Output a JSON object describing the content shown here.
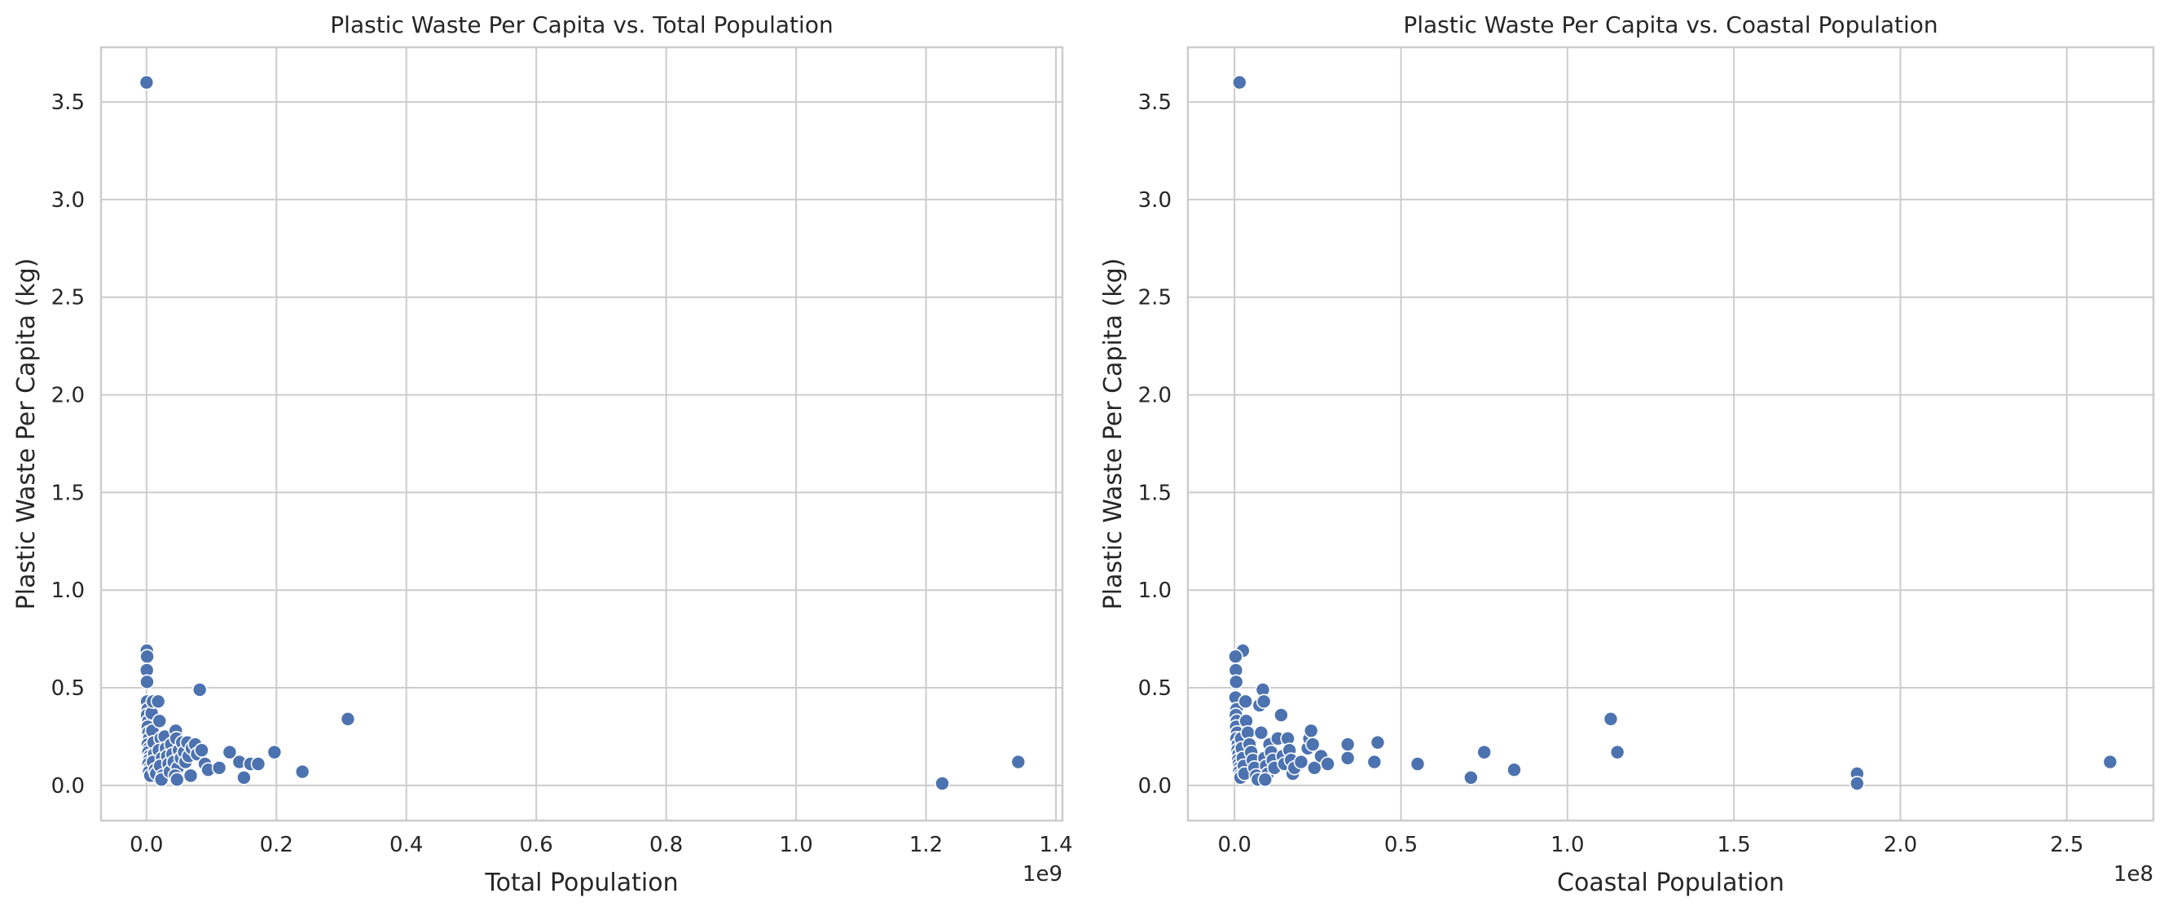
{
  "colors": {
    "marker": "#4c72b0",
    "grid": "#cccccc",
    "background": "#ffffff"
  },
  "chart_data": [
    {
      "type": "scatter",
      "title": "Plastic Waste Per Capita vs. Total Population",
      "xlabel": "Total Population",
      "ylabel": "Plastic Waste Per Capita (kg)",
      "x_offset_label": "1e9",
      "xlim": [
        -0.07,
        1.41
      ],
      "ylim": [
        -0.18,
        3.78
      ],
      "x_ticks": [
        0.0,
        0.2,
        0.4,
        0.6,
        0.8,
        1.0,
        1.2,
        1.4
      ],
      "x_tick_labels": [
        "0.0",
        "0.2",
        "0.4",
        "0.6",
        "0.8",
        "1.0",
        "1.2",
        "1.4"
      ],
      "y_ticks": [
        0.0,
        0.5,
        1.0,
        1.5,
        2.0,
        2.5,
        3.0,
        3.5
      ],
      "y_tick_labels": [
        "0.0",
        "0.5",
        "1.0",
        "1.5",
        "2.0",
        "2.5",
        "3.0",
        "3.5"
      ],
      "grid": true,
      "x_unit_scale": 1000000000,
      "points": [
        [
          0.0001,
          3.6
        ],
        [
          0.0005,
          0.69
        ],
        [
          0.001,
          0.66
        ],
        [
          0.0005,
          0.59
        ],
        [
          0.0008,
          0.53
        ],
        [
          0.001,
          0.43
        ],
        [
          0.002,
          0.39
        ],
        [
          0.001,
          0.36
        ],
        [
          0.003,
          0.33
        ],
        [
          0.002,
          0.3
        ],
        [
          0.003,
          0.27
        ],
        [
          0.004,
          0.24
        ],
        [
          0.002,
          0.21
        ],
        [
          0.004,
          0.19
        ],
        [
          0.003,
          0.17
        ],
        [
          0.005,
          0.15
        ],
        [
          0.004,
          0.13
        ],
        [
          0.003,
          0.11
        ],
        [
          0.005,
          0.09
        ],
        [
          0.004,
          0.07
        ],
        [
          0.006,
          0.05
        ],
        [
          0.008,
          0.37
        ],
        [
          0.01,
          0.43
        ],
        [
          0.009,
          0.28
        ],
        [
          0.011,
          0.22
        ],
        [
          0.012,
          0.16
        ],
        [
          0.01,
          0.12
        ],
        [
          0.013,
          0.08
        ],
        [
          0.015,
          0.06
        ],
        [
          0.018,
          0.43
        ],
        [
          0.02,
          0.33
        ],
        [
          0.022,
          0.24
        ],
        [
          0.019,
          0.18
        ],
        [
          0.024,
          0.14
        ],
        [
          0.021,
          0.1
        ],
        [
          0.025,
          0.05
        ],
        [
          0.023,
          0.03
        ],
        [
          0.028,
          0.25
        ],
        [
          0.03,
          0.19
        ],
        [
          0.032,
          0.15
        ],
        [
          0.034,
          0.11
        ],
        [
          0.036,
          0.07
        ],
        [
          0.038,
          0.21
        ],
        [
          0.04,
          0.16
        ],
        [
          0.042,
          0.12
        ],
        [
          0.045,
          0.28
        ],
        [
          0.046,
          0.24
        ],
        [
          0.048,
          0.09
        ],
        [
          0.044,
          0.05
        ],
        [
          0.047,
          0.03
        ],
        [
          0.05,
          0.18
        ],
        [
          0.053,
          0.14
        ],
        [
          0.055,
          0.22
        ],
        [
          0.058,
          0.17
        ],
        [
          0.06,
          0.12
        ],
        [
          0.063,
          0.22
        ],
        [
          0.065,
          0.15
        ],
        [
          0.068,
          0.05
        ],
        [
          0.07,
          0.19
        ],
        [
          0.075,
          0.21
        ],
        [
          0.078,
          0.16
        ],
        [
          0.082,
          0.49
        ],
        [
          0.085,
          0.18
        ],
        [
          0.09,
          0.11
        ],
        [
          0.095,
          0.08
        ],
        [
          0.112,
          0.09
        ],
        [
          0.128,
          0.17
        ],
        [
          0.143,
          0.12
        ],
        [
          0.15,
          0.04
        ],
        [
          0.16,
          0.11
        ],
        [
          0.172,
          0.11
        ],
        [
          0.197,
          0.17
        ],
        [
          0.24,
          0.07
        ],
        [
          0.31,
          0.34
        ],
        [
          1.225,
          0.01
        ],
        [
          1.342,
          0.12
        ]
      ]
    },
    {
      "type": "scatter",
      "title": "Plastic Waste Per Capita vs. Coastal Population",
      "xlabel": "Coastal Population",
      "ylabel": "Plastic Waste Per Capita (kg)",
      "x_offset_label": "1e8",
      "xlim": [
        -0.14,
        2.76
      ],
      "ylim": [
        -0.18,
        3.78
      ],
      "x_ticks": [
        0.0,
        0.5,
        1.0,
        1.5,
        2.0,
        2.5
      ],
      "x_tick_labels": [
        "0.0",
        "0.5",
        "1.0",
        "1.5",
        "2.0",
        "2.5"
      ],
      "y_ticks": [
        0.0,
        0.5,
        1.0,
        1.5,
        2.0,
        2.5,
        3.0,
        3.5
      ],
      "y_tick_labels": [
        "0.0",
        "0.5",
        "1.0",
        "1.5",
        "2.0",
        "2.5",
        "3.0",
        "3.5"
      ],
      "grid": true,
      "x_unit_scale": 100000000,
      "points": [
        [
          0.015,
          3.6
        ],
        [
          0.025,
          0.69
        ],
        [
          0.003,
          0.66
        ],
        [
          0.004,
          0.59
        ],
        [
          0.005,
          0.53
        ],
        [
          0.003,
          0.45
        ],
        [
          0.006,
          0.39
        ],
        [
          0.004,
          0.36
        ],
        [
          0.007,
          0.33
        ],
        [
          0.005,
          0.3
        ],
        [
          0.008,
          0.27
        ],
        [
          0.006,
          0.24
        ],
        [
          0.01,
          0.21
        ],
        [
          0.009,
          0.18
        ],
        [
          0.012,
          0.16
        ],
        [
          0.011,
          0.13
        ],
        [
          0.013,
          0.11
        ],
        [
          0.015,
          0.09
        ],
        [
          0.014,
          0.07
        ],
        [
          0.016,
          0.05
        ],
        [
          0.018,
          0.04
        ],
        [
          0.02,
          0.24
        ],
        [
          0.022,
          0.19
        ],
        [
          0.025,
          0.14
        ],
        [
          0.028,
          0.1
        ],
        [
          0.03,
          0.06
        ],
        [
          0.033,
          0.43
        ],
        [
          0.035,
          0.33
        ],
        [
          0.04,
          0.27
        ],
        [
          0.045,
          0.21
        ],
        [
          0.05,
          0.17
        ],
        [
          0.055,
          0.13
        ],
        [
          0.06,
          0.09
        ],
        [
          0.065,
          0.05
        ],
        [
          0.07,
          0.03
        ],
        [
          0.075,
          0.41
        ],
        [
          0.08,
          0.27
        ],
        [
          0.085,
          0.49
        ],
        [
          0.088,
          0.43
        ],
        [
          0.09,
          0.14
        ],
        [
          0.095,
          0.1
        ],
        [
          0.1,
          0.06
        ],
        [
          0.092,
          0.03
        ],
        [
          0.105,
          0.21
        ],
        [
          0.11,
          0.17
        ],
        [
          0.115,
          0.13
        ],
        [
          0.12,
          0.09
        ],
        [
          0.13,
          0.24
        ],
        [
          0.14,
          0.36
        ],
        [
          0.145,
          0.15
        ],
        [
          0.15,
          0.11
        ],
        [
          0.16,
          0.24
        ],
        [
          0.165,
          0.18
        ],
        [
          0.17,
          0.13
        ],
        [
          0.175,
          0.06
        ],
        [
          0.18,
          0.09
        ],
        [
          0.2,
          0.12
        ],
        [
          0.22,
          0.19
        ],
        [
          0.225,
          0.24
        ],
        [
          0.23,
          0.28
        ],
        [
          0.235,
          0.21
        ],
        [
          0.24,
          0.09
        ],
        [
          0.26,
          0.15
        ],
        [
          0.28,
          0.11
        ],
        [
          0.34,
          0.21
        ],
        [
          0.34,
          0.14
        ],
        [
          0.42,
          0.12
        ],
        [
          0.43,
          0.22
        ],
        [
          0.55,
          0.11
        ],
        [
          0.71,
          0.04
        ],
        [
          0.75,
          0.17
        ],
        [
          0.84,
          0.08
        ],
        [
          1.13,
          0.34
        ],
        [
          1.15,
          0.17
        ],
        [
          1.87,
          0.06
        ],
        [
          1.87,
          0.01
        ],
        [
          2.63,
          0.12
        ]
      ]
    }
  ]
}
